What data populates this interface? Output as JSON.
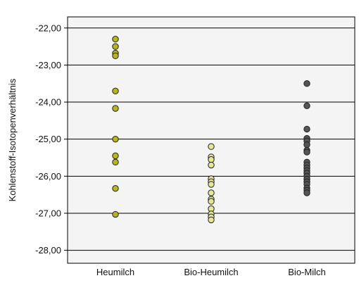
{
  "chart_data": {
    "type": "scatter",
    "title": "",
    "xlabel": "",
    "ylabel": "Kohlenstoff-Isotopenverhältnis",
    "ylim": [
      -28.35,
      -21.7
    ],
    "yticks": [
      -22,
      -23,
      -24,
      -25,
      -26,
      -27,
      -28
    ],
    "ytick_labels": [
      "-22,00",
      "-23,00",
      "-24,00",
      "-25,00",
      "-26,00",
      "-27,00",
      "-28,00"
    ],
    "categories": [
      "Heumilch",
      "Bio-Heumilch",
      "Bio-Milch"
    ],
    "grid": "horizontal",
    "background": "#f4f4f4",
    "series": [
      {
        "category": "Heumilch",
        "color": "#b5b51c",
        "values": [
          -22.3,
          -22.5,
          -22.68,
          -22.75,
          -23.7,
          -24.17,
          -25.0,
          -25.45,
          -25.62,
          -26.33,
          -27.03
        ]
      },
      {
        "category": "Bio-Heumilch",
        "color": "#e6e69a",
        "values": [
          -25.2,
          -25.48,
          -25.55,
          -25.7,
          -26.07,
          -26.15,
          -26.22,
          -26.45,
          -26.62,
          -26.68,
          -26.88,
          -27.02,
          -27.1,
          -27.18
        ]
      },
      {
        "category": "Bio-Milch",
        "color": "#555555",
        "values": [
          -23.5,
          -24.1,
          -24.73,
          -24.98,
          -25.05,
          -25.15,
          -25.3,
          -25.35,
          -25.62,
          -25.7,
          -25.78,
          -25.85,
          -25.92,
          -26.0,
          -26.08,
          -26.15,
          -26.22,
          -26.32,
          -26.38,
          -26.45
        ]
      }
    ]
  }
}
